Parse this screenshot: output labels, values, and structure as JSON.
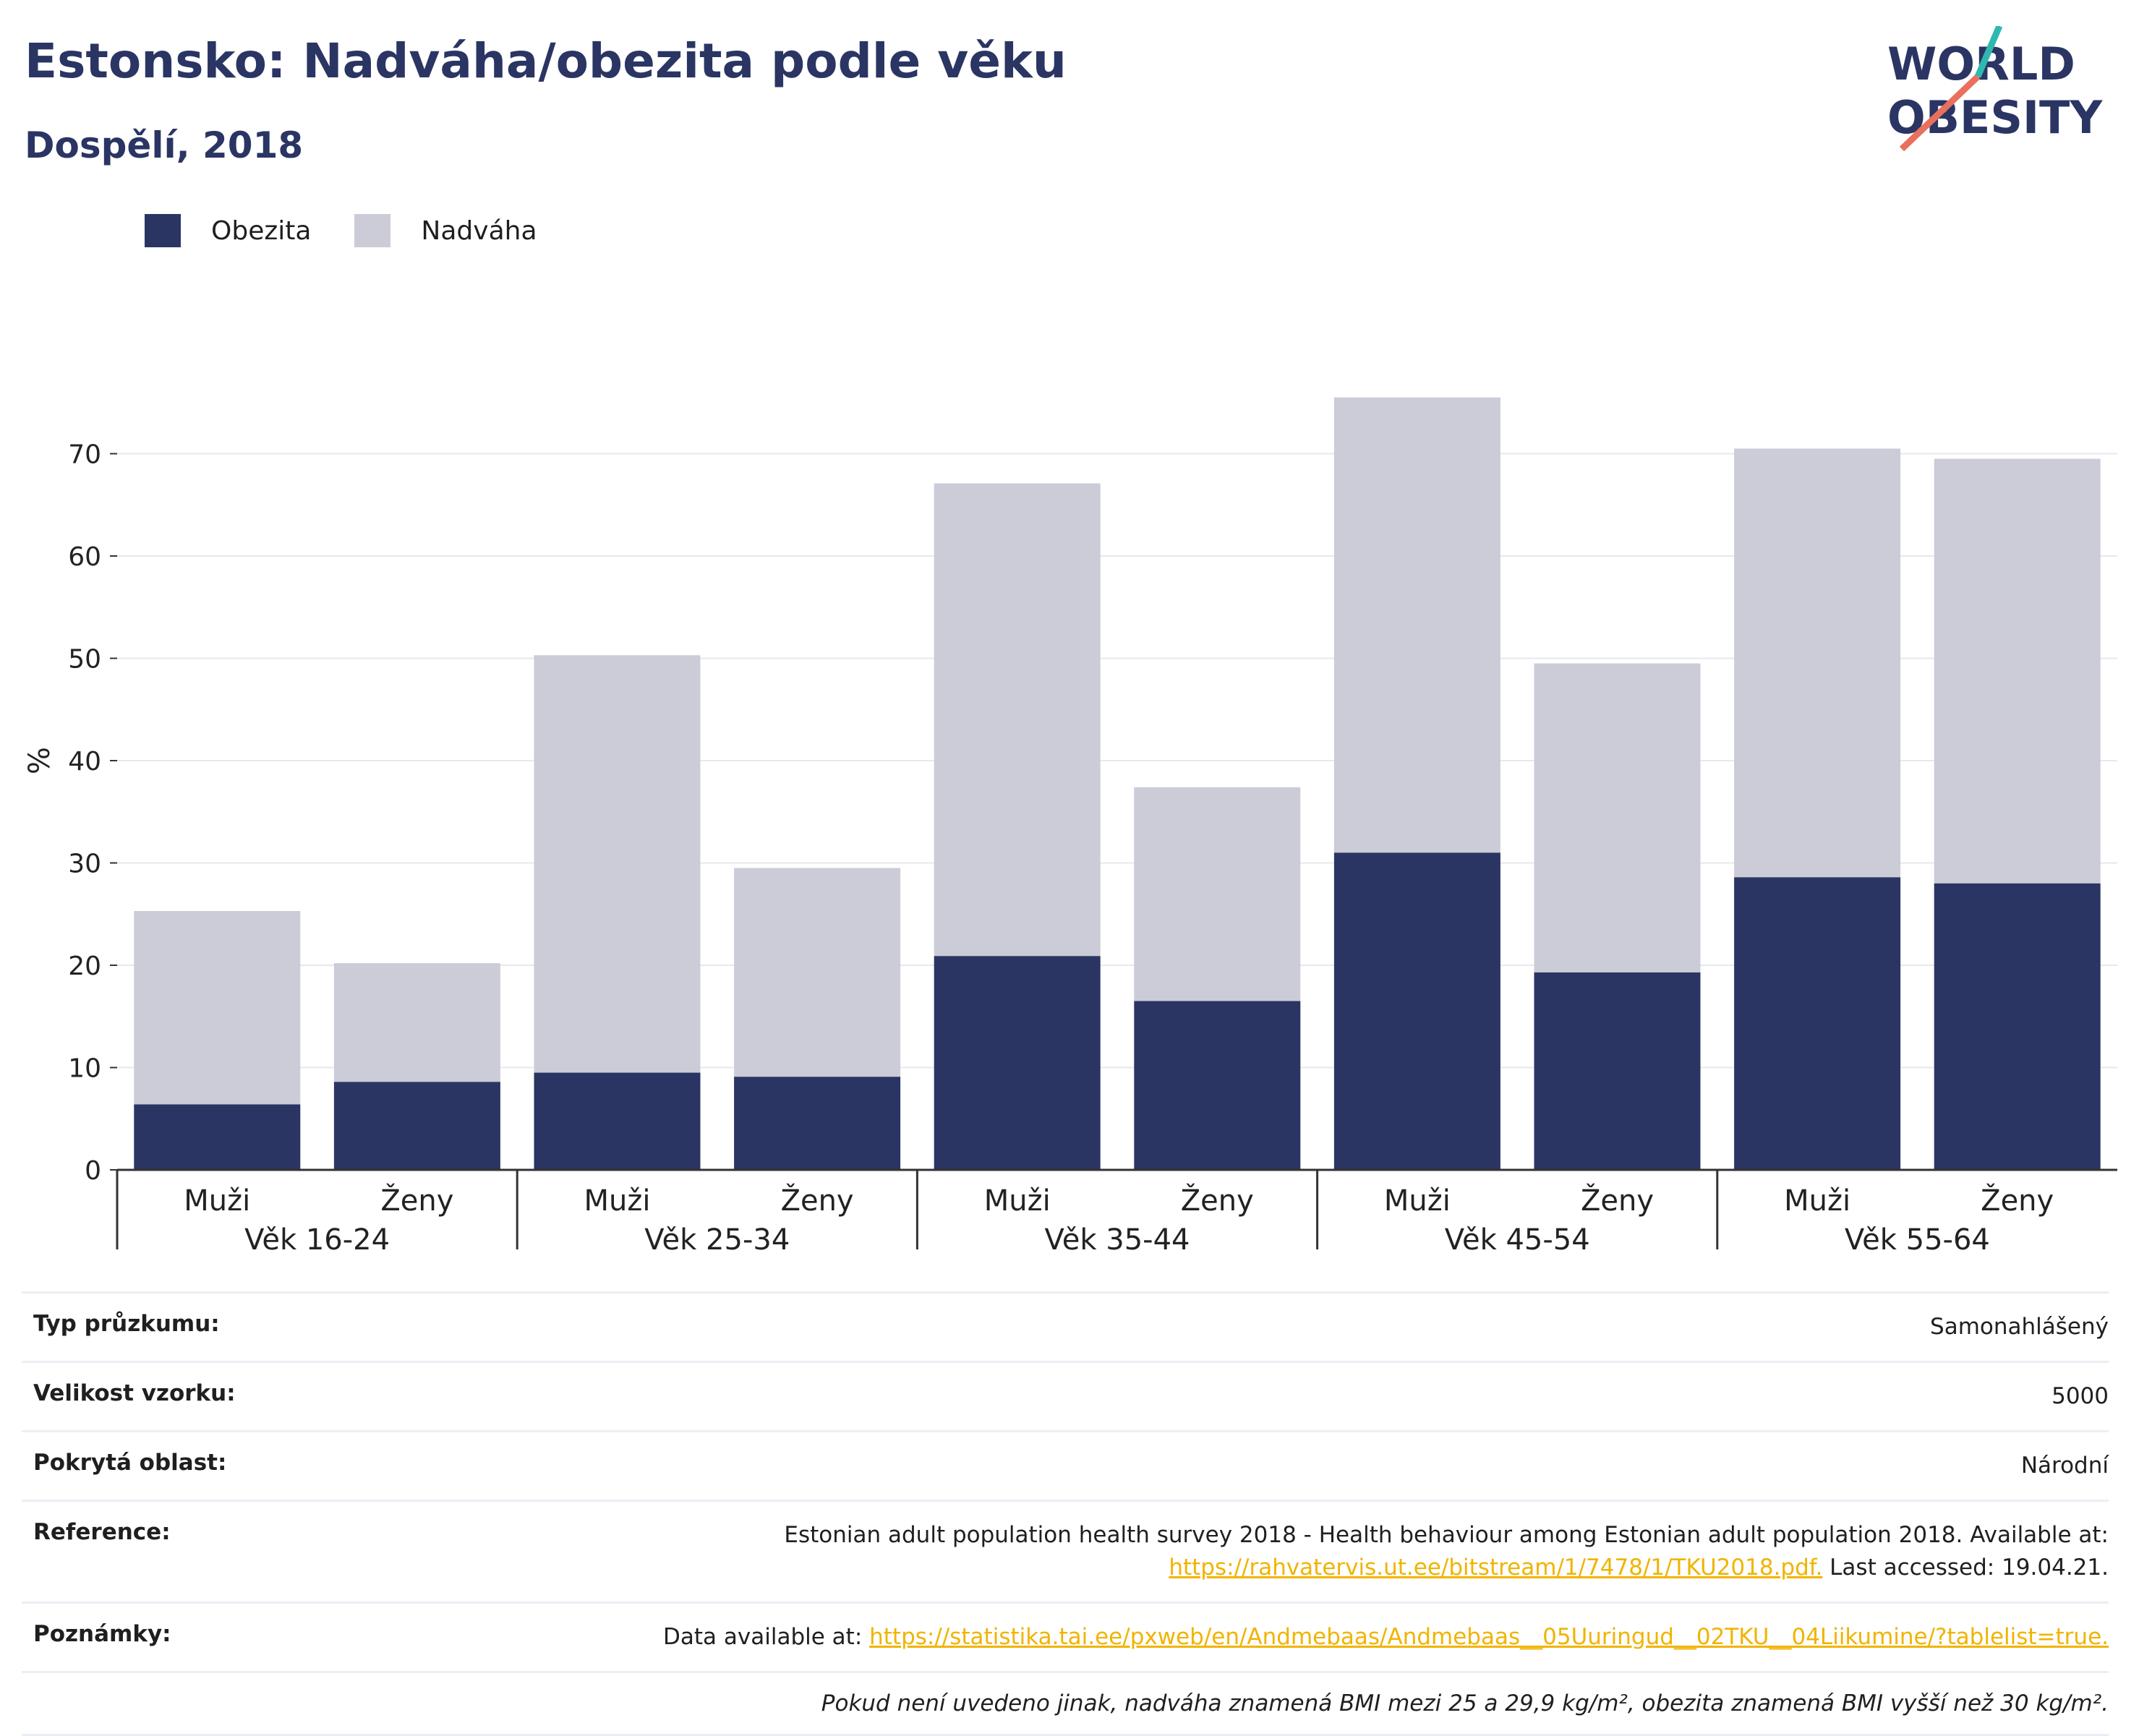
{
  "header": {
    "title": "Estonsko: Nadváha/obezita podle věku",
    "subtitle": "Dospělí, 2018",
    "logo_line1": "WORLD",
    "logo_line2": "OBESITY"
  },
  "colors": {
    "obesity": "#2a3563",
    "overweight": "#cbccd8",
    "grid": "#e6e8ef",
    "axis": "#333333",
    "link": "#f0b400"
  },
  "chart_data": {
    "type": "bar",
    "stacked": true,
    "ylabel": "%",
    "ylim": [
      0,
      80
    ],
    "yticks": [
      0,
      10,
      20,
      30,
      40,
      50,
      60,
      70
    ],
    "grid": true,
    "legend_position": "top-left",
    "groups": [
      "Věk 16-24",
      "Věk 25-34",
      "Věk 35-44",
      "Věk 45-54",
      "Věk 55-64"
    ],
    "categories": [
      "Muži",
      "Ženy",
      "Muži",
      "Ženy",
      "Muži",
      "Ženy",
      "Muži",
      "Ženy",
      "Muži",
      "Ženy"
    ],
    "series": [
      {
        "name": "Obezita",
        "values": [
          6.4,
          8.6,
          9.5,
          9.1,
          20.9,
          16.5,
          31.0,
          19.3,
          28.6,
          28.0
        ]
      },
      {
        "name": "Nadváha",
        "values": [
          18.9,
          11.6,
          40.8,
          20.4,
          46.2,
          20.9,
          44.5,
          30.2,
          41.9,
          41.5
        ]
      }
    ]
  },
  "meta": {
    "rows": [
      {
        "label": "Typ průzkumu:",
        "value": "Samonahlášený"
      },
      {
        "label": "Velikost vzorku:",
        "value": "5000"
      },
      {
        "label": "Pokrytá oblast:",
        "value": "Národní"
      }
    ],
    "reference": {
      "label": "Reference:",
      "text1": "Estonian adult population health survey 2018 - Health behaviour among Estonian adult population 2018. Available at:",
      "link": "https://rahvatervis.ut.ee/bitstream/1/7478/1/TKU2018.pdf.",
      "text2": " Last accessed: 19.04.21."
    },
    "notes": {
      "label": "Poznámky:",
      "text1": "Data available at: ",
      "link": "https://statistika.tai.ee/pxweb/en/Andmebaas/Andmebaas__05Uuringud__02TKU__04Liikumine/?tablelist=true."
    },
    "footnote": "Pokud není uvedeno jinak, nadváha znamená BMI mezi 25 a 29,9 kg/m², obezita znamená BMI vyšší než 30 kg/m²."
  }
}
